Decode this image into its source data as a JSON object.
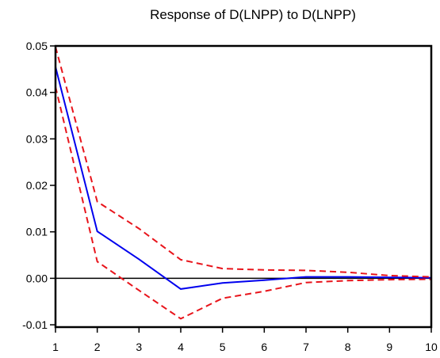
{
  "chart_data": {
    "type": "line",
    "title": "Response of D(LNPP) to D(LNPP)",
    "xlabel": "",
    "ylabel": "",
    "x": [
      1,
      2,
      3,
      4,
      5,
      6,
      7,
      8,
      9,
      10
    ],
    "xlim": [
      1,
      10
    ],
    "ylim": [
      -0.0105,
      0.05
    ],
    "x_ticks": [
      "1",
      "2",
      "3",
      "4",
      "5",
      "6",
      "7",
      "8",
      "9",
      "10"
    ],
    "y_ticks": [
      "0.05",
      "0.04",
      "0.03",
      "0.02",
      "0.01",
      "0.00",
      "-0.01"
    ],
    "y_tick_values": [
      0.05,
      0.04,
      0.03,
      0.02,
      0.01,
      0.0,
      -0.01
    ],
    "grid": false,
    "legend": "none",
    "zero_line": true,
    "series": [
      {
        "role": "response",
        "style": "solid",
        "color": "#0000ee",
        "values": [
          0.0455,
          0.0101,
          0.0041,
          -0.0023,
          -0.001,
          -0.0004,
          0.0003,
          0.0003,
          0.0002,
          0.0001
        ]
      },
      {
        "role": "upper-band",
        "style": "dashed",
        "color": "#e8141b",
        "values": [
          0.0498,
          0.0165,
          0.0107,
          0.004,
          0.0021,
          0.0018,
          0.0017,
          0.0013,
          0.0006,
          0.0003
        ]
      },
      {
        "role": "lower-band",
        "style": "dashed",
        "color": "#e8141b",
        "values": [
          0.0412,
          0.0036,
          -0.0026,
          -0.0087,
          -0.0043,
          -0.0028,
          -0.0009,
          -0.0005,
          -0.0003,
          -0.0002
        ]
      }
    ]
  }
}
